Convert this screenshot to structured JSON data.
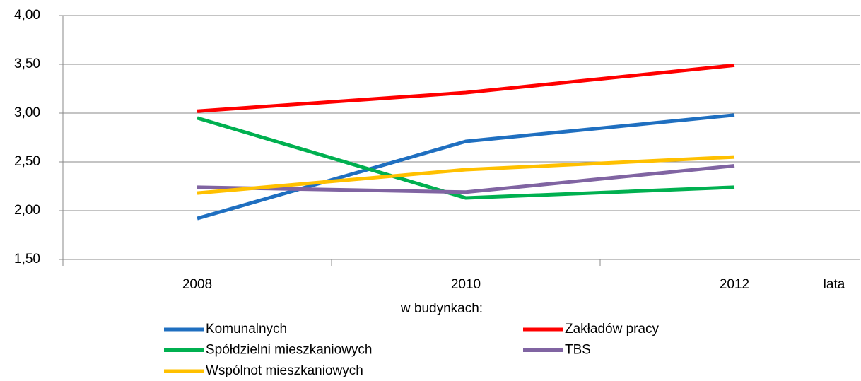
{
  "chart_data": {
    "type": "line",
    "categories": [
      "2008",
      "2010",
      "2012"
    ],
    "x_label": "lata",
    "legend_title": "w budynkach:",
    "series": [
      {
        "name": "Komunalnych",
        "color": "#1f6fc0",
        "values": [
          1.92,
          2.71,
          2.98
        ]
      },
      {
        "name": "Zakładów pracy",
        "color": "#ff0000",
        "values": [
          3.02,
          3.21,
          3.49
        ]
      },
      {
        "name": "Spółdzielni mieszkaniowych",
        "color": "#00b050",
        "values": [
          2.95,
          2.13,
          2.24
        ]
      },
      {
        "name": "TBS",
        "color": "#8064a2",
        "values": [
          2.24,
          2.19,
          2.46
        ]
      },
      {
        "name": "Wspólnot mieszkaniowych",
        "color": "#ffc000",
        "values": [
          2.18,
          2.42,
          2.55
        ]
      }
    ],
    "ylim": [
      1.5,
      4
    ],
    "yticks": [
      {
        "value": 1.5,
        "label": "1,50"
      },
      {
        "value": 2,
        "label": "2,00"
      },
      {
        "value": 2.5,
        "label": "2,50"
      },
      {
        "value": 3,
        "label": "3,00"
      },
      {
        "value": 3.5,
        "label": "3,50"
      },
      {
        "value": 4,
        "label": "4,00"
      }
    ],
    "grid": true,
    "legend": "bottom"
  }
}
